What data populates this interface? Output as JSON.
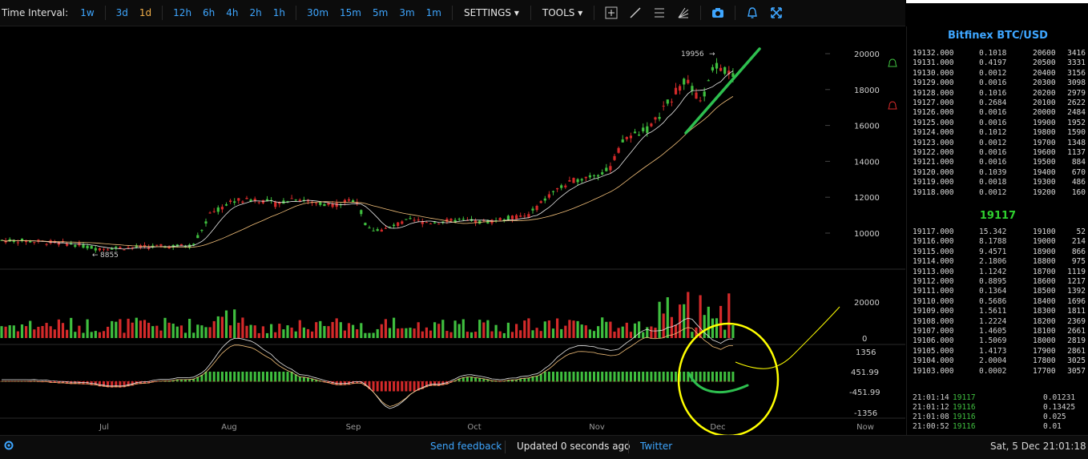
{
  "toolbar": {
    "label": "Time Interval:",
    "intervals": [
      "1w",
      "3d",
      "1d",
      "12h",
      "6h",
      "4h",
      "2h",
      "1h",
      "30m",
      "15m",
      "5m",
      "3m",
      "1m"
    ],
    "active_interval": "1d",
    "settings": "SETTINGS ▾",
    "tools": "TOOLS ▾",
    "icons": [
      "crosshair-icon",
      "trendline-icon",
      "horizontal-lines-icon",
      "fan-icon",
      "camera-icon",
      "alert-bell-icon",
      "fullscreen-icon"
    ]
  },
  "chart": {
    "price_labels": [
      "20000",
      "18000",
      "16000",
      "14000",
      "12000",
      "10000"
    ],
    "volume_labels": [
      "20000",
      "0"
    ],
    "macd_labels": [
      "1356",
      "451.99",
      "-451.99",
      "-1356"
    ],
    "month_labels": [
      "Jul",
      "Aug",
      "Sep",
      "Oct",
      "Nov",
      "Dec",
      "Now"
    ],
    "high_marker": "19956",
    "low_marker": "8855"
  },
  "orderbook": {
    "title": "Bitfinex BTC/USD",
    "asks": [
      [
        "19132.000",
        "0.1018",
        "20600",
        "3416"
      ],
      [
        "19131.000",
        "0.4197",
        "20500",
        "3331"
      ],
      [
        "19130.000",
        "0.0012",
        "20400",
        "3156"
      ],
      [
        "19129.000",
        "0.0016",
        "20300",
        "3098"
      ],
      [
        "19128.000",
        "0.1016",
        "20200",
        "2979"
      ],
      [
        "19127.000",
        "0.2684",
        "20100",
        "2622"
      ],
      [
        "19126.000",
        "0.0016",
        "20000",
        "2484"
      ],
      [
        "19125.000",
        "0.0016",
        "19900",
        "1952"
      ],
      [
        "19124.000",
        "0.1012",
        "19800",
        "1590"
      ],
      [
        "19123.000",
        "0.0012",
        "19700",
        "1348"
      ],
      [
        "19122.000",
        "0.0016",
        "19600",
        "1137"
      ],
      [
        "19121.000",
        "0.0016",
        "19500",
        "884"
      ],
      [
        "19120.000",
        "0.1039",
        "19400",
        "670"
      ],
      [
        "19119.000",
        "0.0018",
        "19300",
        "486"
      ],
      [
        "19118.000",
        "0.0012",
        "19200",
        "160"
      ]
    ],
    "last_price": "19117",
    "bids": [
      [
        "19117.000",
        "15.342",
        "19100",
        "52"
      ],
      [
        "19116.000",
        "8.1788",
        "19000",
        "214"
      ],
      [
        "19115.000",
        "9.4571",
        "18900",
        "866"
      ],
      [
        "19114.000",
        "2.1806",
        "18800",
        "975"
      ],
      [
        "19113.000",
        "1.1242",
        "18700",
        "1119"
      ],
      [
        "19112.000",
        "0.8895",
        "18600",
        "1217"
      ],
      [
        "19111.000",
        "0.1364",
        "18500",
        "1392"
      ],
      [
        "19110.000",
        "0.5686",
        "18400",
        "1696"
      ],
      [
        "19109.000",
        "1.5611",
        "18300",
        "1811"
      ],
      [
        "19108.000",
        "1.2224",
        "18200",
        "2369"
      ],
      [
        "19107.000",
        "1.4605",
        "18100",
        "2661"
      ],
      [
        "19106.000",
        "1.5069",
        "18000",
        "2819"
      ],
      [
        "19105.000",
        "1.4173",
        "17900",
        "2861"
      ],
      [
        "19104.000",
        "2.0004",
        "17800",
        "3025"
      ],
      [
        "19103.000",
        "0.0002",
        "17700",
        "3057"
      ]
    ],
    "trades": [
      [
        "21:01:14",
        "19117",
        "0.01231"
      ],
      [
        "21:01:12",
        "19116",
        "0.13425"
      ],
      [
        "21:01:08",
        "19116",
        "0.025"
      ],
      [
        "21:00:52",
        "19116",
        "0.01"
      ]
    ]
  },
  "footer": {
    "send_feedback": "Send feedback",
    "status": "Updated 0 seconds ago",
    "twitter": "Twitter",
    "datetime": "Sat, 5 Dec 21:01:18"
  },
  "colors": {
    "up": "#3fbf3f",
    "down": "#d42a2a",
    "accent": "#3ea6ff",
    "active": "#f4b04a",
    "annotation": "#ffff00",
    "annotation_green": "#2ebf4f"
  }
}
